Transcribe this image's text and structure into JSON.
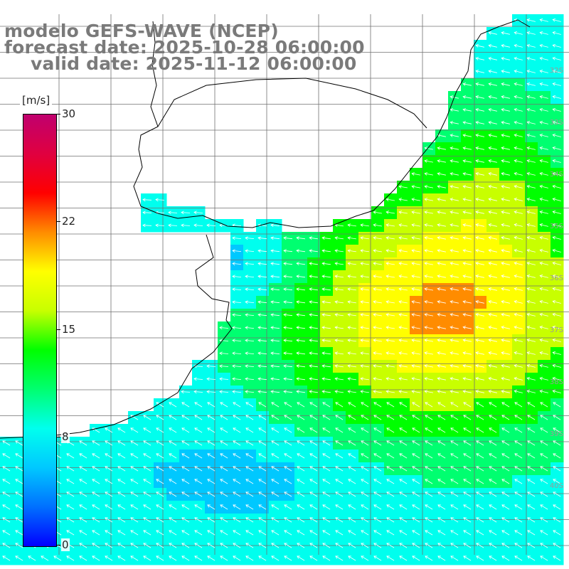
{
  "title": {
    "model": "modelo GEFS-WAVE (NCEP)",
    "forecast": "forecast date: 2025-10-28 06:00:00",
    "valid": "valid date: 2025-11-12 06:00:00"
  },
  "colorbar": {
    "unit": "[m/s]",
    "ticks": [
      "30",
      "22",
      "15",
      "8",
      "0"
    ],
    "range": [
      0,
      30
    ],
    "colors": [
      "#0000ff",
      "#0070ff",
      "#00c8ff",
      "#00ffee",
      "#00ff70",
      "#00ff00",
      "#c8ff00",
      "#ffff00",
      "#ff8c00",
      "#ff0000",
      "#e00040",
      "#c0006e"
    ]
  },
  "lat_labels": [
    "32S",
    "33S",
    "34S",
    "35S",
    "36S",
    "37S",
    "38S",
    "39S",
    "40S"
  ],
  "wind_arrow_color": "#ffffff",
  "coast_color": "#000000",
  "grid_color": "#707070"
}
